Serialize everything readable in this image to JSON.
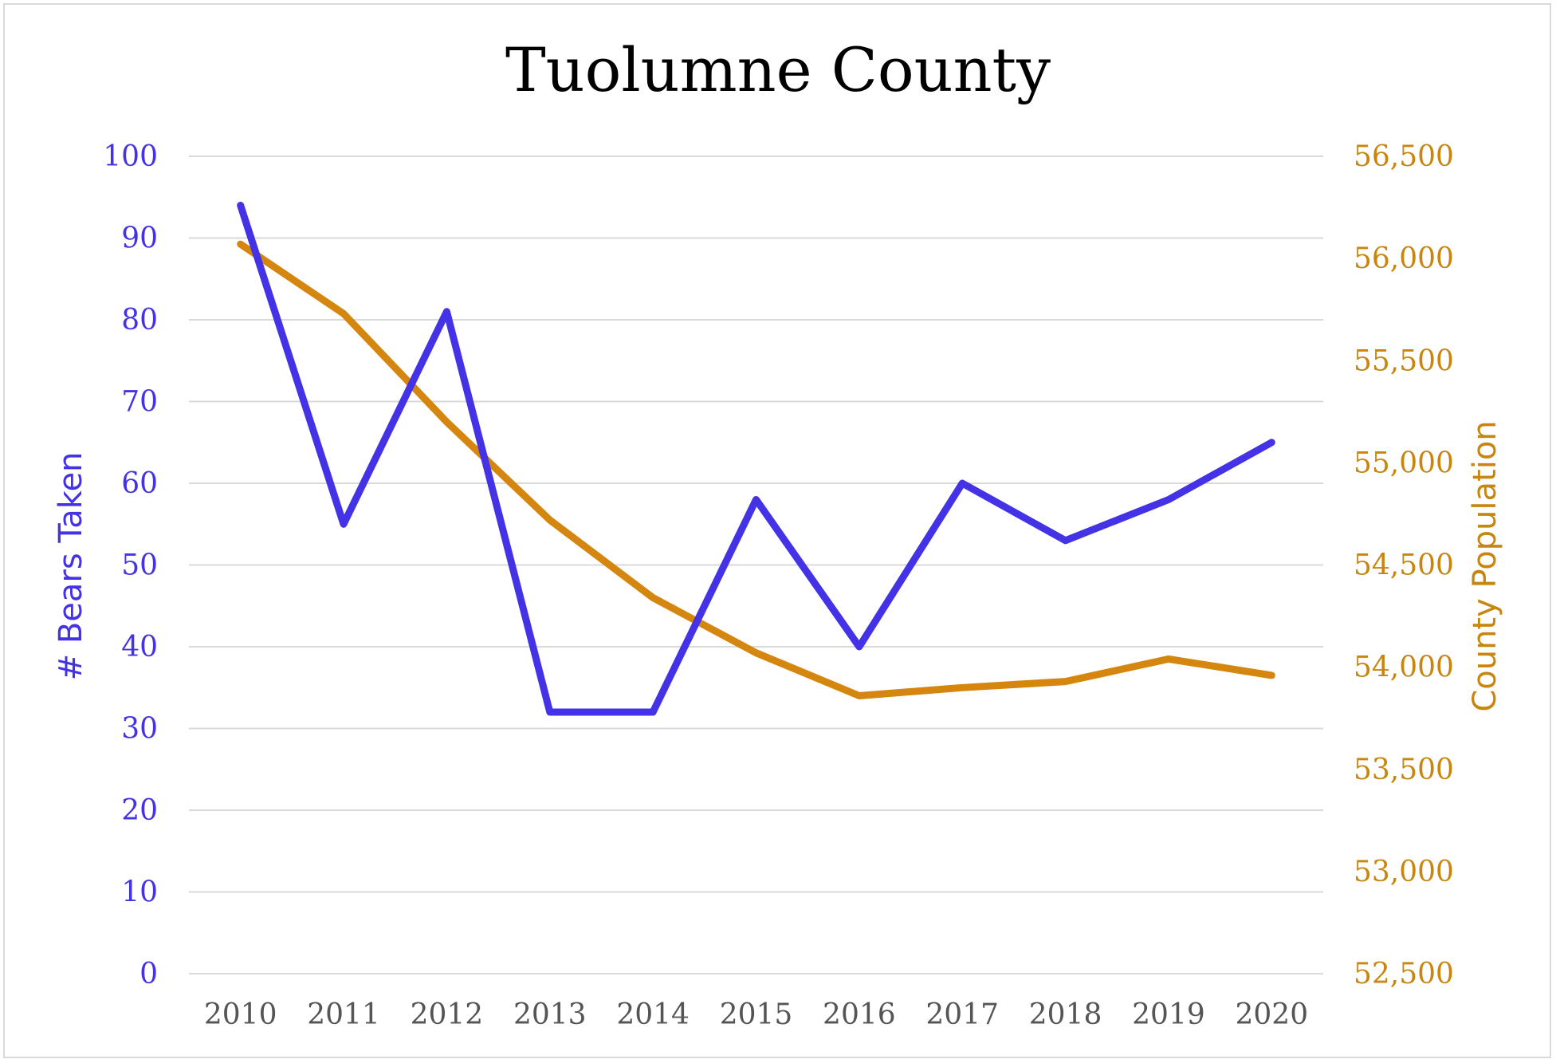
{
  "chart_data": {
    "type": "line",
    "title": "Tuolumne County",
    "categories": [
      "2010",
      "2011",
      "2012",
      "2013",
      "2014",
      "2015",
      "2016",
      "2017",
      "2018",
      "2019",
      "2020"
    ],
    "series": [
      {
        "name": "# Bears Taken",
        "axis": "left",
        "color": "#4433E6",
        "values": [
          94,
          55,
          81,
          32,
          32,
          58,
          40,
          60,
          53,
          58,
          65
        ]
      },
      {
        "name": "County Population",
        "axis": "right",
        "color": "#D4860F",
        "values": [
          56070,
          55730,
          55200,
          54720,
          54340,
          54070,
          53860,
          53900,
          53930,
          54040,
          53960
        ]
      }
    ],
    "y_left": {
      "label": "# Bears Taken",
      "range": [
        0,
        100
      ],
      "ticks": [
        "0",
        "10",
        "20",
        "30",
        "40",
        "50",
        "60",
        "70",
        "80",
        "90",
        "100"
      ],
      "color": "#4433E6"
    },
    "y_right": {
      "label": "County Population",
      "range": [
        52500,
        56500
      ],
      "ticks": [
        "52,500",
        "53,000",
        "53,500",
        "54,000",
        "54,500",
        "55,000",
        "55,500",
        "56,000",
        "56,500"
      ],
      "color": "#C8860F"
    },
    "x_tick_color": "#555555",
    "grid": true,
    "legend": "none"
  }
}
